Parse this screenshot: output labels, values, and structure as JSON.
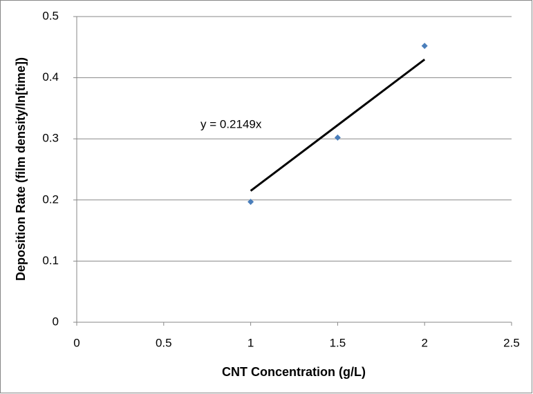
{
  "chart_data": {
    "type": "scatter",
    "x_label": "CNT Concentration (g/L)",
    "y_label": "Deposition Rate (film density/ln[time])",
    "series": [
      {
        "name": "Deposition Rate",
        "color": "#4a7ebb",
        "x": [
          1,
          1.5,
          2
        ],
        "values": [
          0.197,
          0.302,
          0.452
        ]
      }
    ],
    "trendline": {
      "color": "#000000",
      "x": [
        1,
        2
      ],
      "values": [
        0.2149,
        0.4298
      ]
    },
    "annotation": "y = 0.2149x",
    "xlim": [
      0,
      2.5
    ],
    "xticks": [
      0,
      0.5,
      1,
      1.5,
      2,
      2.5
    ],
    "ylim": [
      0,
      0.5
    ],
    "yticks": [
      0,
      0.1,
      0.2,
      0.3,
      0.4,
      0.5
    ],
    "grid": true
  }
}
